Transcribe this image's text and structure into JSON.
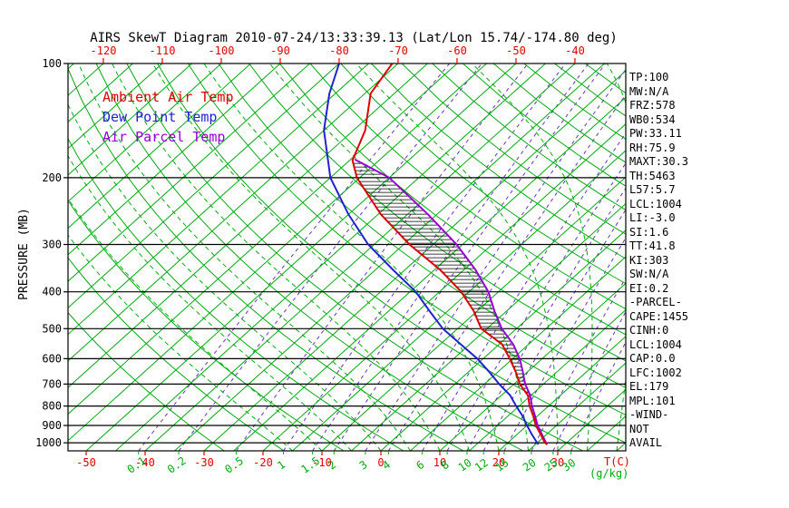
{
  "legend": [
    {
      "label": "Ambient Air Temp",
      "color": "#dd0000"
    },
    {
      "label": "Dew Point Temp",
      "color": "#2222cc"
    },
    {
      "label": "Air Parcel Temp",
      "color": "#9400d3"
    }
  ],
  "stats": [
    "TP:100",
    "MW:N/A",
    "FRZ:578",
    "WB0:534",
    "PW:33.11",
    "RH:75.9",
    "MAXT:30.3",
    "TH:5463",
    "L57:5.7",
    "LCL:1004",
    "LI:-3.0",
    "SI:1.6",
    "TT:41.8",
    "KI:303",
    "SW:N/A",
    "EI:0.2",
    "-PARCEL-",
    "CAPE:1455",
    "CINH:0",
    "LCL:1004",
    "CAP:0.0",
    "LFC:1002",
    "EL:179",
    "MPL:101",
    "-WIND-",
    "NOT",
    "AVAIL"
  ],
  "chart_data": {
    "type": "line",
    "title": "AIRS SkewT Diagram 2010-07-24/13:33:39.13 (Lat/Lon 15.74/-174.80 deg)",
    "x_axis": {
      "label_bottom": "T(C)",
      "label_bottom2": "(g/kg)",
      "temp_ticks_top": [
        -120,
        -110,
        -100,
        -90,
        -80,
        -70,
        -60,
        -50,
        -40
      ],
      "temp_ticks_bottom": [
        -50,
        -40,
        -30,
        -20,
        -10,
        0,
        10,
        20,
        30
      ],
      "mixing_ratio_ticks": [
        0.1,
        0.2,
        0.5,
        1,
        1.5,
        2,
        3,
        4,
        6,
        8,
        10,
        12,
        15,
        20,
        25,
        30
      ]
    },
    "y_axis": {
      "label": "PRESSURE (MB)",
      "ticks": [
        100,
        200,
        300,
        400,
        500,
        600,
        700,
        800,
        900,
        1000
      ],
      "range": [
        100,
        1050
      ],
      "scale": "log"
    },
    "background": {
      "isotherm_range": [
        -130,
        45
      ],
      "isotherm_step": 5,
      "dry_adiabat_range": [
        -30,
        180
      ],
      "dry_adiabat_step": 10,
      "moist_adiabat_range": [
        -15,
        40
      ],
      "moist_adiabat_step": 5,
      "colors": {
        "isolines": "#00aa11",
        "mixing": "#6633bb",
        "axis_red": "#dd0000",
        "frame": "#000000"
      }
    },
    "series": [
      {
        "name": "Ambient Air Temp",
        "color": "#dd0000",
        "points": [
          [
            1010,
            27.0
          ],
          [
            1000,
            26.3
          ],
          [
            950,
            24.0
          ],
          [
            900,
            21.5
          ],
          [
            850,
            19.3
          ],
          [
            800,
            16.8
          ],
          [
            750,
            14.5
          ],
          [
            700,
            11.0
          ],
          [
            650,
            8.0
          ],
          [
            600,
            4.5
          ],
          [
            550,
            0.5
          ],
          [
            500,
            -6.0
          ],
          [
            450,
            -10.5
          ],
          [
            400,
            -16.3
          ],
          [
            350,
            -24.0
          ],
          [
            300,
            -34.0
          ],
          [
            250,
            -44.5
          ],
          [
            200,
            -55.5
          ],
          [
            180,
            -59.5
          ],
          [
            150,
            -63.0
          ],
          [
            120,
            -69.0
          ],
          [
            100,
            -71.0
          ]
        ]
      },
      {
        "name": "Dew Point Temp",
        "color": "#2222cc",
        "points": [
          [
            1010,
            25.5
          ],
          [
            1000,
            25.0
          ],
          [
            950,
            22.5
          ],
          [
            900,
            20.0
          ],
          [
            850,
            17.5
          ],
          [
            800,
            14.5
          ],
          [
            750,
            11.5
          ],
          [
            700,
            7.5
          ],
          [
            650,
            3.5
          ],
          [
            600,
            -1.0
          ],
          [
            550,
            -6.5
          ],
          [
            500,
            -12.5
          ],
          [
            450,
            -18.0
          ],
          [
            400,
            -24.0
          ],
          [
            350,
            -32.0
          ],
          [
            300,
            -41.0
          ],
          [
            250,
            -50.0
          ],
          [
            200,
            -60.0
          ],
          [
            150,
            -70.0
          ],
          [
            120,
            -76.0
          ],
          [
            100,
            -80.0
          ]
        ]
      },
      {
        "name": "Air Parcel Temp",
        "color": "#9400d3",
        "points": [
          [
            1010,
            27.0
          ],
          [
            1000,
            26.5
          ],
          [
            950,
            24.2
          ],
          [
            900,
            21.8
          ],
          [
            850,
            19.6
          ],
          [
            800,
            17.2
          ],
          [
            750,
            14.9
          ],
          [
            700,
            11.9
          ],
          [
            650,
            9.2
          ],
          [
            600,
            6.2
          ],
          [
            550,
            2.4
          ],
          [
            500,
            -2.5
          ],
          [
            450,
            -7.0
          ],
          [
            400,
            -11.7
          ],
          [
            350,
            -18.0
          ],
          [
            300,
            -26.0
          ],
          [
            250,
            -36.5
          ],
          [
            200,
            -50.0
          ],
          [
            179,
            -59.3
          ]
        ]
      }
    ],
    "hatch": {
      "between": [
        "Ambient Air Temp",
        "Air Parcel Temp"
      ],
      "p_range": [
        182,
        1000
      ]
    }
  }
}
